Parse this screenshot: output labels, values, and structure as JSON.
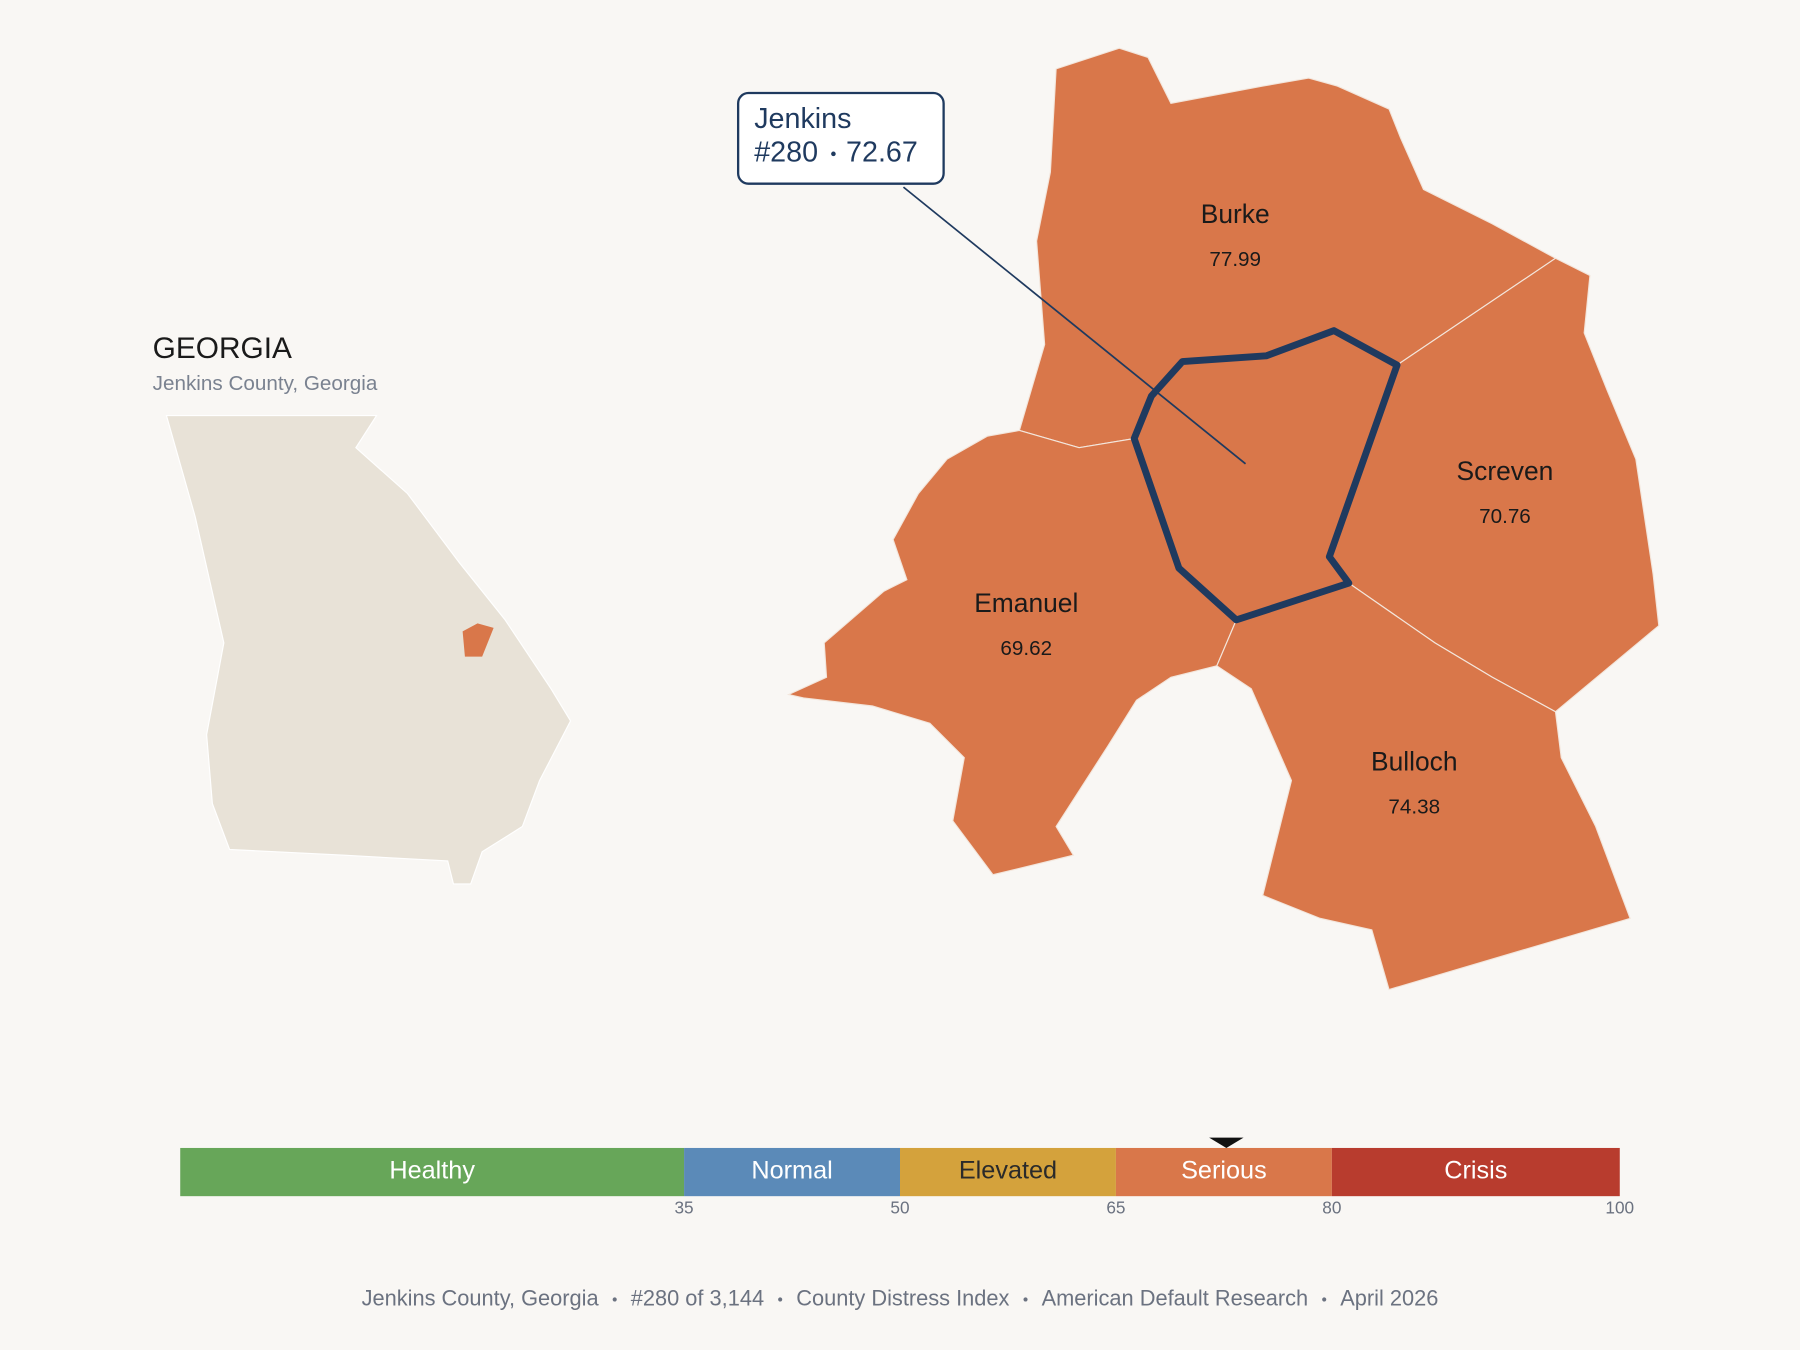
{
  "inset": {
    "title": "GEORGIA",
    "subtitle": "Jenkins County, Georgia",
    "state_color": "#e8e2d7",
    "highlight_color": "#d9774a"
  },
  "map": {
    "county_color": "#d9774a",
    "outline_color": "#1f3a5f",
    "counties": [
      {
        "name": "Burke",
        "value": 77.99
      },
      {
        "name": "Screven",
        "value": 70.76
      },
      {
        "name": "Emanuel",
        "value": 69.62
      },
      {
        "name": "Bulloch",
        "value": 74.38
      }
    ],
    "callout": {
      "name": "Jenkins",
      "rank": "#280",
      "score": 72.67
    }
  },
  "scale": {
    "xlim": [
      0,
      100
    ],
    "ticks": [
      35,
      50,
      65,
      80,
      100
    ],
    "bands": [
      {
        "label": "Healthy",
        "color": "#67a659",
        "text_color": "#ffffff"
      },
      {
        "label": "Normal",
        "color": "#5b8ab8",
        "text_color": "#ffffff"
      },
      {
        "label": "Elevated",
        "color": "#d4a23c",
        "text_color": "#2a2a2a"
      },
      {
        "label": "Serious",
        "color": "#d9774a",
        "text_color": "#ffffff"
      },
      {
        "label": "Crisis",
        "color": "#b83c2e",
        "text_color": "#ffffff"
      }
    ]
  },
  "footer": [
    "Jenkins County, Georgia",
    "#280 of 3,144",
    "County Distress Index",
    "American Default Research",
    "April 2026"
  ]
}
